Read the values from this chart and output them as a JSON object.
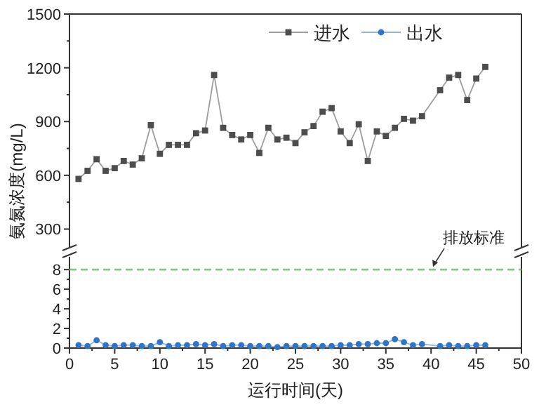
{
  "chart_data": [
    {
      "type": "line",
      "ylabel": "氨氮浓度(mg/L)",
      "xlim": [
        0,
        50
      ],
      "ylim": [
        200,
        1500
      ],
      "yticks": [
        300,
        600,
        900,
        1200,
        1500
      ],
      "tick_labels": "y",
      "legend": "top right",
      "marker": "square",
      "series": [
        {
          "name": "进水",
          "color": "#4d4d4d",
          "x": [
            1,
            2,
            3,
            4,
            5,
            6,
            7,
            8,
            9,
            10,
            11,
            12,
            13,
            14,
            15,
            16,
            17,
            18,
            19,
            20,
            21,
            22,
            23,
            24,
            25,
            26,
            27,
            28,
            29,
            30,
            31,
            32,
            33,
            34,
            35,
            36,
            37,
            38,
            39,
            41,
            42,
            43,
            44,
            45,
            46
          ],
          "values": [
            580,
            625,
            690,
            625,
            640,
            680,
            660,
            695,
            880,
            720,
            770,
            770,
            770,
            835,
            850,
            1160,
            865,
            825,
            800,
            825,
            725,
            865,
            800,
            810,
            780,
            840,
            875,
            955,
            975,
            845,
            780,
            885,
            680,
            845,
            820,
            865,
            915,
            905,
            930,
            1075,
            1145,
            1160,
            1020,
            1140,
            1205
          ]
        }
      ]
    },
    {
      "type": "line",
      "xlabel": "运行时间(天)",
      "xlim": [
        0,
        50
      ],
      "xticks": [
        0,
        5,
        10,
        15,
        20,
        25,
        30,
        35,
        40,
        45,
        50
      ],
      "ylim": [
        0,
        9.3
      ],
      "yticks": [
        0,
        2,
        4,
        6,
        8
      ],
      "marker": "circle",
      "series": [
        {
          "name": "出水",
          "color": "#2e75c9",
          "x": [
            1,
            2,
            3,
            4,
            5,
            6,
            7,
            8,
            9,
            10,
            11,
            12,
            13,
            14,
            15,
            16,
            17,
            18,
            19,
            20,
            21,
            22,
            23,
            24,
            25,
            26,
            27,
            28,
            29,
            30,
            31,
            32,
            33,
            34,
            35,
            36,
            37,
            38,
            39,
            41,
            42,
            43,
            44,
            45,
            46
          ],
          "values": [
            0.3,
            0.2,
            0.8,
            0.3,
            0.2,
            0.3,
            0.3,
            0.2,
            0.2,
            0.6,
            0.2,
            0.3,
            0.3,
            0.4,
            0.3,
            0.4,
            0.2,
            0.3,
            0.3,
            0.2,
            0.2,
            0.2,
            0.1,
            0.2,
            0.2,
            0.2,
            0.2,
            0.2,
            0.2,
            0.3,
            0.3,
            0.4,
            0.4,
            0.5,
            0.5,
            0.9,
            0.6,
            0.3,
            0.4,
            0.2,
            0.3,
            0.2,
            0.2,
            0.3,
            0.3
          ]
        }
      ],
      "ref_lines": [
        {
          "axis": "y",
          "value": 8,
          "label": "排放标准",
          "color": "#7fc97f",
          "line_style": "dashed"
        }
      ]
    }
  ]
}
